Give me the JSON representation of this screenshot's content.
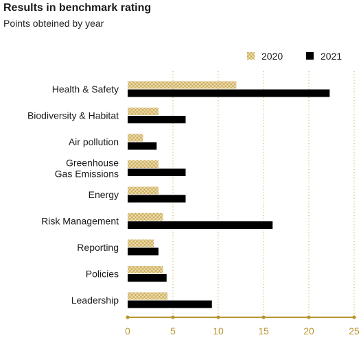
{
  "header": {
    "title": "Results in benchmark rating",
    "subtitle": "Points obteined by year"
  },
  "colors": {
    "series_2020": "#c9a64a",
    "series_2021": "#000000",
    "axis": "#b8962e",
    "grid": "#c9a64a"
  },
  "chart_data": {
    "type": "bar",
    "orientation": "horizontal",
    "title": "Results in benchmark rating",
    "subtitle": "Points obteined by year",
    "categories": [
      [
        "Health & Safety"
      ],
      [
        "Biodiversity & Habitat"
      ],
      [
        "Air pollution"
      ],
      [
        "Greenhouse",
        "Gas Emissions"
      ],
      [
        "Energy"
      ],
      [
        "Risk Management"
      ],
      [
        "Reporting"
      ],
      [
        "Policies"
      ],
      [
        "Leadership"
      ]
    ],
    "series": [
      {
        "name": "2020",
        "values": [
          12,
          3.4,
          1.7,
          3.4,
          3.4,
          3.9,
          2.9,
          3.9,
          4.4
        ]
      },
      {
        "name": "2021",
        "values": [
          22.3,
          6.4,
          3.2,
          6.4,
          6.4,
          16,
          3.4,
          4.3,
          9.3
        ]
      }
    ],
    "xlim": [
      0,
      25
    ],
    "xticks": [
      0,
      5,
      10,
      15,
      20,
      25
    ],
    "grid": "vertical dotted",
    "legend": "top-right"
  }
}
